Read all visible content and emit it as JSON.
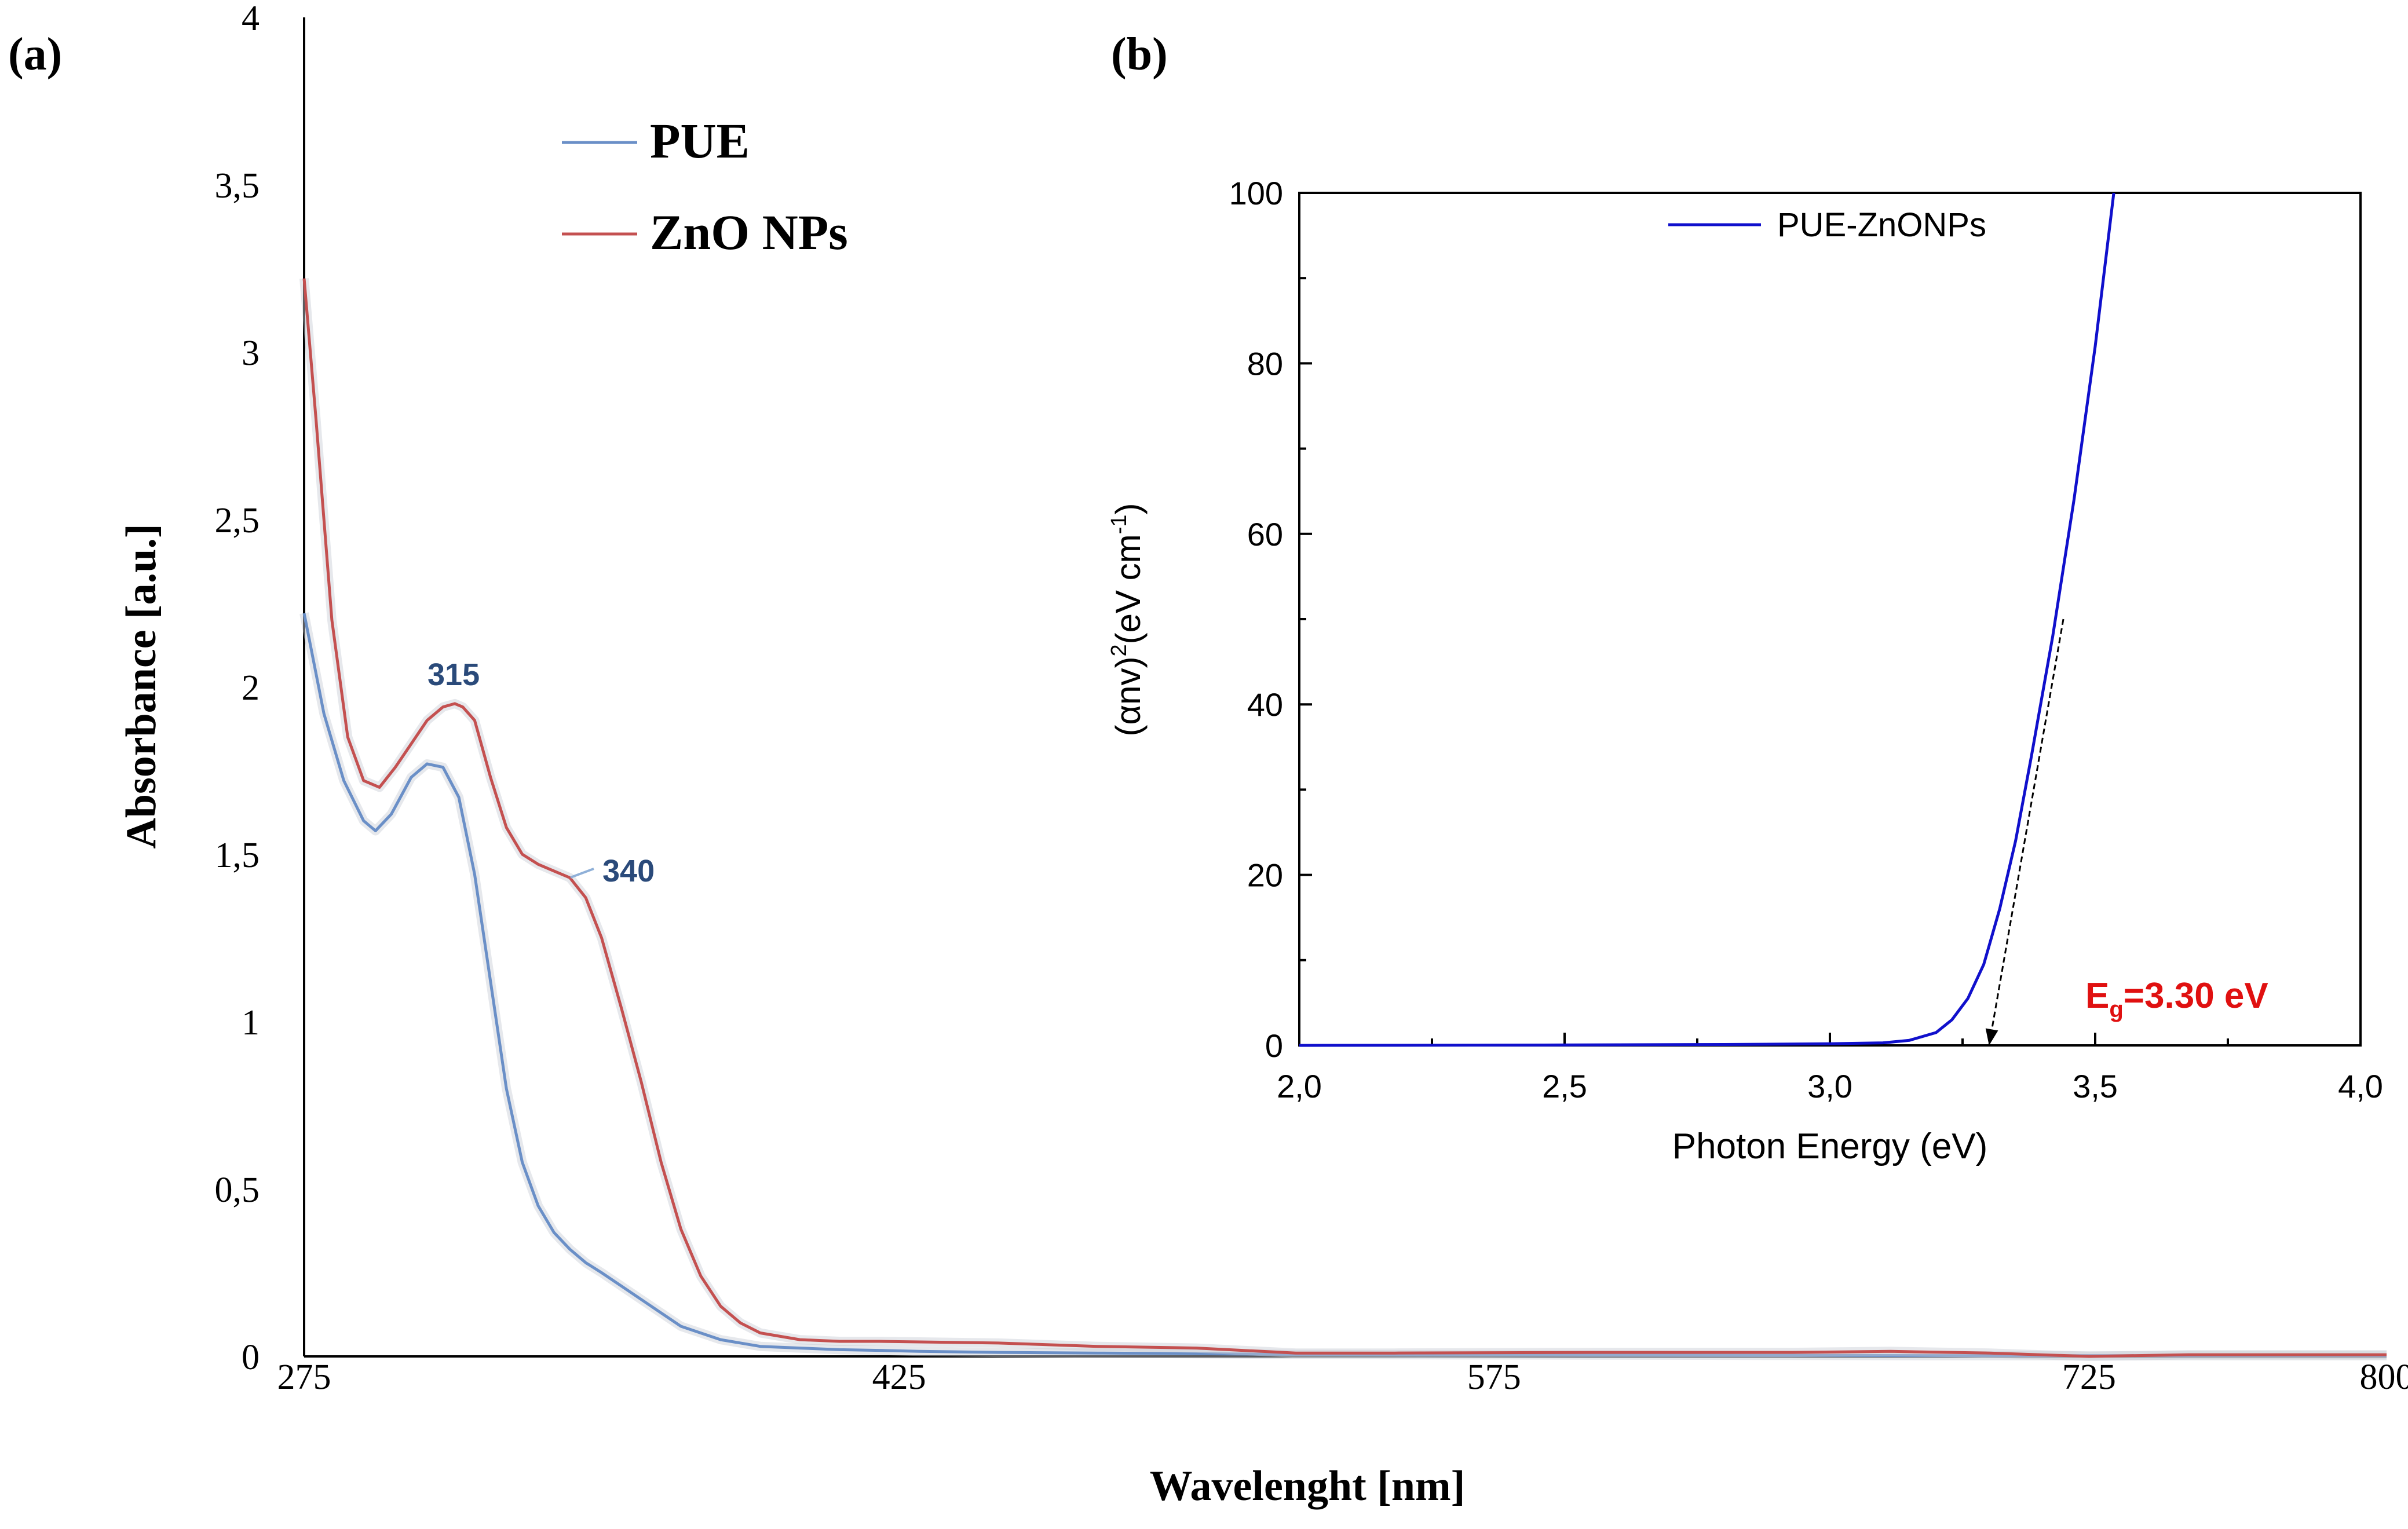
{
  "chart_data": [
    {
      "panel_label": "(a)",
      "type": "line",
      "xlabel": "Wavelenght [nm]",
      "ylabel": "Absorbance [a.u.]",
      "xlim": [
        275,
        800
      ],
      "ylim": [
        0,
        4
      ],
      "xticks": [
        275,
        425,
        575,
        725,
        800
      ],
      "xtick_labels": [
        "275",
        "425",
        "575",
        "725",
        "800"
      ],
      "yticks": [
        0,
        0.5,
        1,
        1.5,
        2,
        2.5,
        3,
        3.5,
        4
      ],
      "ytick_labels": [
        "0",
        "0,5",
        "1",
        "1,5",
        "2",
        "2,5",
        "3",
        "3,5",
        "4"
      ],
      "legend_position": "top-left",
      "series": [
        {
          "name": "PUE",
          "color": "#6a8fc7",
          "x": [
            275,
            280,
            285,
            290,
            293,
            297,
            302,
            306,
            310,
            314,
            318,
            322,
            326,
            330,
            334,
            338,
            342,
            346,
            350,
            355,
            360,
            365,
            370,
            380,
            390,
            400,
            410,
            420,
            430,
            450,
            475,
            500,
            525,
            550,
            600,
            650,
            700,
            725,
            750,
            800
          ],
          "values": [
            2.22,
            1.92,
            1.72,
            1.6,
            1.57,
            1.62,
            1.73,
            1.77,
            1.76,
            1.67,
            1.44,
            1.12,
            0.8,
            0.58,
            0.45,
            0.37,
            0.32,
            0.28,
            0.25,
            0.21,
            0.17,
            0.13,
            0.09,
            0.05,
            0.03,
            0.025,
            0.02,
            0.018,
            0.015,
            0.012,
            0.01,
            0.008,
            0.006,
            0.005,
            0.004,
            0.003,
            0.002,
            0.002,
            0.002,
            0.002
          ]
        },
        {
          "name": "ZnO NPs",
          "color": "#c45050",
          "x": [
            275,
            278,
            282,
            286,
            290,
            294,
            298,
            302,
            306,
            310,
            313,
            315,
            318,
            322,
            326,
            330,
            334,
            338,
            342,
            346,
            350,
            355,
            360,
            365,
            370,
            375,
            380,
            385,
            390,
            400,
            410,
            420,
            450,
            475,
            500,
            525,
            550,
            600,
            650,
            675,
            700,
            725,
            750,
            800
          ],
          "values": [
            3.22,
            2.8,
            2.2,
            1.85,
            1.72,
            1.7,
            1.76,
            1.83,
            1.9,
            1.94,
            1.95,
            1.94,
            1.9,
            1.73,
            1.58,
            1.5,
            1.47,
            1.45,
            1.43,
            1.37,
            1.25,
            1.04,
            0.82,
            0.58,
            0.38,
            0.24,
            0.15,
            0.1,
            0.07,
            0.05,
            0.045,
            0.045,
            0.04,
            0.03,
            0.025,
            0.01,
            0.01,
            0.012,
            0.012,
            0.015,
            0.01,
            0.0,
            0.005,
            0.005
          ]
        }
      ],
      "annotations": [
        {
          "text": "315",
          "x": 315,
          "y": 2.0
        },
        {
          "text": "340",
          "x": 340,
          "y": 1.46
        }
      ],
      "legend_labels": [
        "PUE",
        "ZnO NPs"
      ]
    },
    {
      "panel_label": "(b)",
      "type": "line",
      "xlabel": "Photon Energy (eV)",
      "ylabel_prefix": "(αnv)",
      "ylabel_sup1": "2",
      "ylabel_mid": "(eV cm",
      "ylabel_sup2": "-1",
      "ylabel_suffix": ")",
      "xlim": [
        2.0,
        4.0
      ],
      "ylim": [
        0,
        100
      ],
      "xticks": [
        2.0,
        2.5,
        3.0,
        3.5,
        4.0
      ],
      "xtick_labels": [
        "2,0",
        "2,5",
        "3,0",
        "3,5",
        "4,0"
      ],
      "yticks": [
        0,
        20,
        40,
        60,
        80,
        100
      ],
      "ytick_labels": [
        "0",
        "20",
        "40",
        "60",
        "80",
        "100"
      ],
      "legend_position": "top-center",
      "series": [
        {
          "name": "PUE-ZnONPs",
          "color": "#1010cc",
          "x": [
            2.0,
            2.5,
            2.8,
            3.0,
            3.1,
            3.15,
            3.2,
            3.23,
            3.26,
            3.29,
            3.32,
            3.35,
            3.38,
            3.42,
            3.46,
            3.5,
            3.535
          ],
          "values": [
            0.0,
            0.05,
            0.1,
            0.2,
            0.3,
            0.6,
            1.5,
            3.0,
            5.5,
            9.5,
            16,
            24,
            34,
            48,
            64,
            82,
            100
          ]
        }
      ],
      "tangent_line": {
        "x": [
          3.3,
          3.44
        ],
        "values": [
          0,
          50
        ]
      },
      "annotation": {
        "text_main": "E",
        "text_sub": "g",
        "text_rest": "=3.30 eV",
        "color": "#e01010"
      }
    }
  ]
}
